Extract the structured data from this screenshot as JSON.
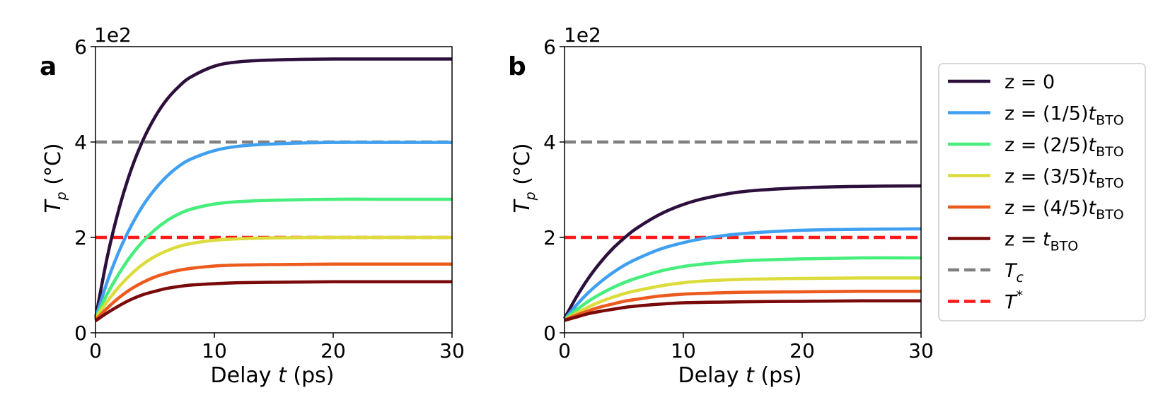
{
  "chart_data": [
    {
      "type": "line",
      "panel": "a",
      "xlabel_pre": "Delay ",
      "xlabel_var": "t",
      "xlabel_post": " (ps)",
      "ylabel_var": "T",
      "ylabel_sub": "p",
      "ylabel_unit": " (°C)",
      "y_offset_label": "1e2",
      "xlim": [
        0,
        30
      ],
      "ylim": [
        0,
        6
      ],
      "xticks": [
        "0",
        "10",
        "20",
        "30"
      ],
      "yticks": [
        "0",
        "2",
        "4",
        "6"
      ],
      "x": [
        0,
        1,
        2,
        3,
        4,
        5,
        6,
        7,
        8,
        10,
        12,
        15,
        20,
        25,
        30
      ],
      "series": [
        {
          "name": "z = 0",
          "color": "#2d0f3c",
          "values": [
            0.3,
            1.6,
            2.62,
            3.42,
            4.04,
            4.52,
            4.89,
            5.16,
            5.36,
            5.59,
            5.68,
            5.72,
            5.74,
            5.74,
            5.74
          ]
        },
        {
          "name": "z = (1/5)t_BTO",
          "color": "#40a0f0",
          "values": [
            0.3,
            1.08,
            1.72,
            2.24,
            2.67,
            3.01,
            3.28,
            3.49,
            3.64,
            3.82,
            3.91,
            3.96,
            3.99,
            3.99,
            3.99
          ]
        },
        {
          "name": "z = (2/5)t_BTO",
          "color": "#46ee7c",
          "values": [
            0.3,
            0.82,
            1.25,
            1.62,
            1.92,
            2.16,
            2.35,
            2.49,
            2.59,
            2.7,
            2.75,
            2.78,
            2.8,
            2.8,
            2.8
          ]
        },
        {
          "name": "z = (3/5)t_BTO",
          "color": "#dcdc3c",
          "values": [
            0.3,
            0.66,
            0.97,
            1.23,
            1.44,
            1.6,
            1.72,
            1.81,
            1.87,
            1.94,
            1.97,
            1.99,
            2.0,
            2.0,
            2.0
          ]
        },
        {
          "name": "z = (4/5)t_BTO",
          "color": "#ec5a1e",
          "values": [
            0.27,
            0.52,
            0.74,
            0.92,
            1.06,
            1.17,
            1.25,
            1.31,
            1.35,
            1.4,
            1.42,
            1.43,
            1.44,
            1.44,
            1.44
          ]
        },
        {
          "name": "z = t_BTO",
          "color": "#7a0a0a",
          "values": [
            0.25,
            0.42,
            0.57,
            0.7,
            0.8,
            0.87,
            0.93,
            0.97,
            1.0,
            1.03,
            1.05,
            1.06,
            1.07,
            1.07,
            1.07
          ]
        }
      ],
      "reference_lines": [
        {
          "name": "T_c",
          "y": 4.0,
          "color": "#808080",
          "style": "dashed"
        },
        {
          "name": "T*",
          "y": 2.0,
          "color": "#ff1a1a",
          "style": "dashed"
        }
      ]
    },
    {
      "type": "line",
      "panel": "b",
      "xlabel_pre": "Delay ",
      "xlabel_var": "t",
      "xlabel_post": " (ps)",
      "ylabel_var": "T",
      "ylabel_sub": "p",
      "ylabel_unit": " (°C)",
      "y_offset_label": "1e2",
      "xlim": [
        0,
        30
      ],
      "ylim": [
        0,
        6
      ],
      "xticks": [
        "0",
        "10",
        "20",
        "30"
      ],
      "yticks": [
        "0",
        "2",
        "4",
        "6"
      ],
      "x": [
        0,
        1,
        2,
        3,
        4,
        5,
        6,
        8,
        10,
        12,
        15,
        20,
        25,
        30
      ],
      "series": [
        {
          "name": "z = 0",
          "color": "#2d0f3c",
          "values": [
            0.3,
            0.75,
            1.14,
            1.47,
            1.75,
            1.98,
            2.18,
            2.48,
            2.69,
            2.83,
            2.96,
            3.04,
            3.07,
            3.08
          ]
        },
        {
          "name": "z = (1/5)t_BTO",
          "color": "#40a0f0",
          "values": [
            0.28,
            0.58,
            0.84,
            1.06,
            1.25,
            1.41,
            1.54,
            1.75,
            1.89,
            1.99,
            2.08,
            2.15,
            2.17,
            2.18
          ]
        },
        {
          "name": "z = (2/5)t_BTO",
          "color": "#46ee7c",
          "values": [
            0.28,
            0.48,
            0.66,
            0.81,
            0.94,
            1.05,
            1.14,
            1.29,
            1.39,
            1.45,
            1.51,
            1.55,
            1.57,
            1.57
          ]
        },
        {
          "name": "z = (3/5)t_BTO",
          "color": "#dcdc3c",
          "values": [
            0.27,
            0.41,
            0.54,
            0.65,
            0.74,
            0.82,
            0.88,
            0.98,
            1.05,
            1.09,
            1.12,
            1.14,
            1.15,
            1.15
          ]
        },
        {
          "name": "z = (4/5)t_BTO",
          "color": "#ec5a1e",
          "values": [
            0.27,
            0.37,
            0.46,
            0.54,
            0.6,
            0.66,
            0.7,
            0.77,
            0.81,
            0.83,
            0.85,
            0.86,
            0.87,
            0.87
          ]
        },
        {
          "name": "z = t_BTO",
          "color": "#7a0a0a",
          "values": [
            0.26,
            0.33,
            0.4,
            0.45,
            0.49,
            0.53,
            0.56,
            0.6,
            0.63,
            0.64,
            0.65,
            0.66,
            0.67,
            0.67
          ]
        }
      ],
      "reference_lines": [
        {
          "name": "T_c",
          "y": 4.0,
          "color": "#808080",
          "style": "dashed"
        },
        {
          "name": "T*",
          "y": 2.0,
          "color": "#ff1a1a",
          "style": "dashed"
        }
      ]
    }
  ],
  "legend": {
    "placement": "right",
    "entries": [
      {
        "pre": "z = ",
        "frac": "",
        "var": "",
        "sub": "",
        "color": "#2d0f3c",
        "style": "solid",
        "text": "0"
      },
      {
        "pre": "z = ",
        "frac": "(1/5)",
        "var": "t",
        "sub": "BTO",
        "color": "#40a0f0",
        "style": "solid",
        "text": ""
      },
      {
        "pre": "z = ",
        "frac": "(2/5)",
        "var": "t",
        "sub": "BTO",
        "color": "#46ee7c",
        "style": "solid",
        "text": ""
      },
      {
        "pre": "z = ",
        "frac": "(3/5)",
        "var": "t",
        "sub": "BTO",
        "color": "#dcdc3c",
        "style": "solid",
        "text": ""
      },
      {
        "pre": "z = ",
        "frac": "(4/5)",
        "var": "t",
        "sub": "BTO",
        "color": "#ec5a1e",
        "style": "solid",
        "text": ""
      },
      {
        "pre": "z = ",
        "frac": "",
        "var": "t",
        "sub": "BTO",
        "color": "#7a0a0a",
        "style": "solid",
        "text": ""
      },
      {
        "pre": "",
        "frac": "",
        "var": "T",
        "sub": "c",
        "color": "#808080",
        "style": "dashed",
        "text": ""
      },
      {
        "pre": "",
        "frac": "",
        "var": "T",
        "sub": "",
        "sup": "*",
        "color": "#ff1a1a",
        "style": "dashed",
        "text": ""
      }
    ]
  }
}
